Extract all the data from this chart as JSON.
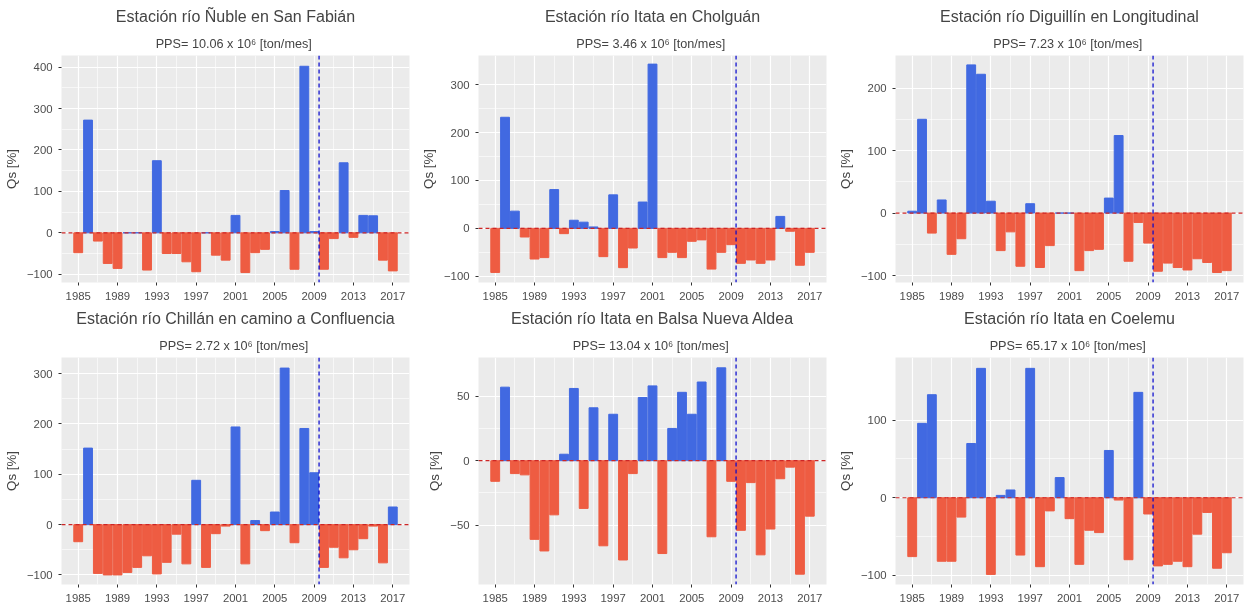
{
  "chart_data": [
    {
      "type": "bar",
      "title": "Estación río Ñuble en San Fabián",
      "subtitle": "PPS=  10.06 x 10⁶ [ton/mes]",
      "ylabel": "Qs [%]",
      "x": [
        1985,
        1986,
        1987,
        1988,
        1989,
        1990,
        1991,
        1992,
        1993,
        1994,
        1995,
        1996,
        1997,
        1998,
        1999,
        2000,
        2001,
        2002,
        2003,
        2004,
        2005,
        2006,
        2007,
        2008,
        2009,
        2010,
        2011,
        2012,
        2013,
        2014,
        2015,
        2016,
        2017
      ],
      "values": [
        -48,
        272,
        -20,
        -74,
        -86,
        0,
        0,
        -90,
        174,
        -50,
        -50,
        -70,
        -94,
        0,
        -54,
        -66,
        42,
        -96,
        -48,
        -40,
        3,
        102,
        -88,
        402,
        3,
        -88,
        -14,
        169,
        -11,
        42,
        41,
        -66,
        -92
      ],
      "colors": [
        "#ee5c42",
        "#4169e1",
        "#ee5c42",
        "#ee5c42",
        "#ee5c42",
        "#4169e1",
        "#4169e1",
        "#ee5c42",
        "#4169e1",
        "#ee5c42",
        "#ee5c42",
        "#ee5c42",
        "#ee5c42",
        "#4169e1",
        "#ee5c42",
        "#ee5c42",
        "#4169e1",
        "#ee5c42",
        "#ee5c42",
        "#ee5c42",
        "#4169e1",
        "#4169e1",
        "#ee5c42",
        "#4169e1",
        "#4169e1",
        "#ee5c42",
        "#ee5c42",
        "#4169e1",
        "#ee5c42",
        "#4169e1",
        "#4169e1",
        "#ee5c42",
        "#ee5c42"
      ],
      "xlim": [
        1983.3,
        2018.7
      ],
      "xticks": [
        1985,
        1989,
        1993,
        1997,
        2001,
        2005,
        2009,
        2013,
        2017
      ],
      "ylim": [
        -120,
        428
      ],
      "yticks": [
        -100,
        0,
        100,
        200,
        300,
        400
      ],
      "grid": true,
      "ref_lines": [
        {
          "axis": "x",
          "value": 2009.5,
          "color": "#0000cd",
          "line_style": "dashed"
        },
        {
          "axis": "y",
          "value": 0,
          "color": "#cd2626",
          "line_style": "dashed"
        }
      ]
    },
    {
      "type": "bar",
      "title": "Estación río Itata en Cholguán",
      "subtitle": "PPS=  3.46 x 10⁶ [ton/mes]",
      "ylabel": "Qs [%]",
      "x": [
        1985,
        1986,
        1987,
        1988,
        1989,
        1990,
        1991,
        1992,
        1993,
        1994,
        1995,
        1996,
        1997,
        1998,
        1999,
        2000,
        2001,
        2002,
        2003,
        2004,
        2005,
        2006,
        2007,
        2008,
        2009,
        2010,
        2011,
        2012,
        2013,
        2014,
        2015,
        2016,
        2017
      ],
      "values": [
        -92,
        232,
        36,
        -18,
        -64,
        -61,
        81,
        -11,
        17,
        13,
        3,
        -59,
        70,
        -82,
        -41,
        55,
        343,
        -61,
        -50,
        -61,
        -27,
        -24,
        -85,
        -50,
        -34,
        -73,
        -66,
        -73,
        -66,
        25,
        -6,
        -77,
        -50
      ],
      "colors": [
        "#ee5c42",
        "#4169e1",
        "#4169e1",
        "#ee5c42",
        "#ee5c42",
        "#ee5c42",
        "#4169e1",
        "#ee5c42",
        "#4169e1",
        "#4169e1",
        "#4169e1",
        "#ee5c42",
        "#4169e1",
        "#ee5c42",
        "#ee5c42",
        "#4169e1",
        "#4169e1",
        "#ee5c42",
        "#ee5c42",
        "#ee5c42",
        "#ee5c42",
        "#ee5c42",
        "#ee5c42",
        "#ee5c42",
        "#ee5c42",
        "#ee5c42",
        "#ee5c42",
        "#ee5c42",
        "#ee5c42",
        "#4169e1",
        "#ee5c42",
        "#ee5c42",
        "#ee5c42"
      ],
      "xlim": [
        1983.3,
        2018.7
      ],
      "xticks": [
        1985,
        1989,
        1993,
        1997,
        2001,
        2005,
        2009,
        2013,
        2017
      ],
      "ylim": [
        -113,
        361
      ],
      "yticks": [
        -100,
        0,
        100,
        200,
        300
      ],
      "grid": true,
      "ref_lines": [
        {
          "axis": "x",
          "value": 2009.5,
          "color": "#0000cd",
          "line_style": "dashed"
        },
        {
          "axis": "y",
          "value": 0,
          "color": "#cd2626",
          "line_style": "dashed"
        }
      ]
    },
    {
      "type": "bar",
      "title": "Estación río Diguillín en Longitudinal",
      "subtitle": "PPS=  7.23 x 10⁶ [ton/mes]",
      "ylabel": "Qs [%]",
      "x": [
        1985,
        1986,
        1987,
        1988,
        1989,
        1990,
        1991,
        1992,
        1993,
        1994,
        1995,
        1996,
        1997,
        1998,
        1999,
        2000,
        2001,
        2002,
        2003,
        2004,
        2005,
        2006,
        2007,
        2008,
        2009,
        2010,
        2011,
        2012,
        2013,
        2014,
        2015,
        2016,
        2017
      ],
      "values": [
        3,
        150,
        -32,
        21,
        -66,
        -41,
        237,
        222,
        19,
        -60,
        -30,
        -85,
        15,
        -87,
        -52,
        0,
        0,
        -92,
        -60,
        -58,
        24,
        124,
        -77,
        -15,
        -48,
        -93,
        -80,
        -87,
        -91,
        -73,
        -79,
        -95,
        -92
      ],
      "colors": [
        "#4169e1",
        "#4169e1",
        "#ee5c42",
        "#4169e1",
        "#ee5c42",
        "#ee5c42",
        "#4169e1",
        "#4169e1",
        "#4169e1",
        "#ee5c42",
        "#ee5c42",
        "#ee5c42",
        "#4169e1",
        "#ee5c42",
        "#ee5c42",
        "#4169e1",
        "#4169e1",
        "#ee5c42",
        "#ee5c42",
        "#ee5c42",
        "#4169e1",
        "#4169e1",
        "#ee5c42",
        "#ee5c42",
        "#ee5c42",
        "#ee5c42",
        "#ee5c42",
        "#ee5c42",
        "#ee5c42",
        "#ee5c42",
        "#ee5c42",
        "#ee5c42",
        "#ee5c42"
      ],
      "xlim": [
        1983.3,
        2018.7
      ],
      "xticks": [
        1985,
        1989,
        1993,
        1997,
        2001,
        2005,
        2009,
        2013,
        2017
      ],
      "ylim": [
        -111,
        252
      ],
      "yticks": [
        -100,
        0,
        100,
        200
      ],
      "grid": true,
      "ref_lines": [
        {
          "axis": "x",
          "value": 2009.5,
          "color": "#0000cd",
          "line_style": "dashed"
        },
        {
          "axis": "y",
          "value": 0,
          "color": "#cd2626",
          "line_style": "dashed"
        }
      ]
    },
    {
      "type": "bar",
      "title": "Estación río Chillán en camino a Confluencia",
      "subtitle": "PPS=  2.72 x 10⁶ [ton/mes]",
      "ylabel": "Qs [%]",
      "x": [
        1985,
        1986,
        1987,
        1988,
        1989,
        1990,
        1991,
        1992,
        1993,
        1994,
        1995,
        1996,
        1997,
        1998,
        1999,
        2000,
        2001,
        2002,
        2003,
        2004,
        2005,
        2006,
        2007,
        2008,
        2009,
        2010,
        2011,
        2012,
        2013,
        2014,
        2015,
        2016,
        2017
      ],
      "values": [
        -34,
        152,
        -97,
        -100,
        -100,
        -95,
        -85,
        -62,
        -98,
        -75,
        -19,
        -78,
        88,
        -85,
        -18,
        -3,
        194,
        -78,
        8,
        -12,
        25,
        311,
        -36,
        191,
        103,
        -85,
        -45,
        -66,
        -50,
        -28,
        -3,
        -76,
        35
      ],
      "colors": [
        "#ee5c42",
        "#4169e1",
        "#ee5c42",
        "#ee5c42",
        "#ee5c42",
        "#ee5c42",
        "#ee5c42",
        "#ee5c42",
        "#ee5c42",
        "#ee5c42",
        "#ee5c42",
        "#ee5c42",
        "#4169e1",
        "#ee5c42",
        "#ee5c42",
        "#ee5c42",
        "#4169e1",
        "#ee5c42",
        "#4169e1",
        "#ee5c42",
        "#4169e1",
        "#4169e1",
        "#ee5c42",
        "#4169e1",
        "#4169e1",
        "#ee5c42",
        "#ee5c42",
        "#ee5c42",
        "#ee5c42",
        "#ee5c42",
        "#ee5c42",
        "#ee5c42",
        "#4169e1"
      ],
      "xlim": [
        1983.3,
        2018.7
      ],
      "xticks": [
        1985,
        1989,
        1993,
        1997,
        2001,
        2005,
        2009,
        2013,
        2017
      ],
      "ylim": [
        -119,
        332
      ],
      "yticks": [
        -100,
        0,
        100,
        200,
        300
      ],
      "grid": true,
      "ref_lines": [
        {
          "axis": "x",
          "value": 2009.5,
          "color": "#0000cd",
          "line_style": "dashed"
        },
        {
          "axis": "y",
          "value": 0,
          "color": "#cd2626",
          "line_style": "dashed"
        }
      ]
    },
    {
      "type": "bar",
      "title": "Estación río Itata en Balsa Nueva Aldea",
      "subtitle": "PPS=  13.04 x 10⁶ [ton/mes]",
      "ylabel": "Qs [%]",
      "x": [
        1985,
        1986,
        1987,
        1988,
        1989,
        1990,
        1991,
        1992,
        1993,
        1994,
        1995,
        1996,
        1997,
        1998,
        1999,
        2000,
        2001,
        2002,
        2003,
        2004,
        2005,
        2006,
        2007,
        2008,
        2009,
        2010,
        2011,
        2012,
        2013,
        2014,
        2015,
        2016,
        2017
      ],
      "values": [
        -16,
        57,
        -10,
        -11,
        -61,
        -70,
        -42,
        5,
        56,
        -37,
        41,
        -66,
        36,
        -77,
        -10,
        49,
        58,
        -72,
        25,
        53,
        36,
        61,
        -59,
        72,
        -16,
        -54,
        -17,
        -73,
        -53,
        -14,
        -5,
        -88,
        -43
      ],
      "colors": [
        "#ee5c42",
        "#4169e1",
        "#ee5c42",
        "#ee5c42",
        "#ee5c42",
        "#ee5c42",
        "#ee5c42",
        "#4169e1",
        "#4169e1",
        "#ee5c42",
        "#4169e1",
        "#ee5c42",
        "#4169e1",
        "#ee5c42",
        "#ee5c42",
        "#4169e1",
        "#4169e1",
        "#ee5c42",
        "#4169e1",
        "#4169e1",
        "#4169e1",
        "#4169e1",
        "#ee5c42",
        "#4169e1",
        "#ee5c42",
        "#ee5c42",
        "#ee5c42",
        "#ee5c42",
        "#ee5c42",
        "#ee5c42",
        "#ee5c42",
        "#ee5c42",
        "#ee5c42"
      ],
      "xlim": [
        1983.3,
        2018.7
      ],
      "xticks": [
        1985,
        1989,
        1993,
        1997,
        2001,
        2005,
        2009,
        2013,
        2017
      ],
      "ylim": [
        -96,
        80
      ],
      "yticks": [
        -50,
        0,
        50
      ],
      "grid": true,
      "ref_lines": [
        {
          "axis": "x",
          "value": 2009.5,
          "color": "#0000cd",
          "line_style": "dashed"
        },
        {
          "axis": "y",
          "value": 0,
          "color": "#cd2626",
          "line_style": "dashed"
        }
      ]
    },
    {
      "type": "bar",
      "title": "Estación río Itata en Coelemu",
      "subtitle": "PPS=  65.17 x 10⁶ [ton/mes]",
      "ylabel": "Qs [%]",
      "x": [
        1985,
        1986,
        1987,
        1988,
        1989,
        1990,
        1991,
        1992,
        1993,
        1994,
        1995,
        1996,
        1997,
        1998,
        1999,
        2000,
        2001,
        2002,
        2003,
        2004,
        2005,
        2006,
        2007,
        2008,
        2009,
        2010,
        2011,
        2012,
        2013,
        2014,
        2015,
        2016,
        2017
      ],
      "values": [
        -76,
        96,
        133,
        -82,
        -82,
        -25,
        70,
        167,
        -99,
        3,
        10,
        -74,
        167,
        -89,
        -17,
        26,
        -27,
        -86,
        -42,
        -45,
        61,
        -3,
        -80,
        136,
        -21,
        -88,
        -86,
        -82,
        -89,
        -47,
        -19,
        -91,
        -71
      ],
      "colors": [
        "#ee5c42",
        "#4169e1",
        "#4169e1",
        "#ee5c42",
        "#ee5c42",
        "#ee5c42",
        "#4169e1",
        "#4169e1",
        "#ee5c42",
        "#4169e1",
        "#4169e1",
        "#ee5c42",
        "#4169e1",
        "#ee5c42",
        "#ee5c42",
        "#4169e1",
        "#ee5c42",
        "#ee5c42",
        "#ee5c42",
        "#ee5c42",
        "#4169e1",
        "#ee5c42",
        "#ee5c42",
        "#4169e1",
        "#ee5c42",
        "#ee5c42",
        "#ee5c42",
        "#ee5c42",
        "#ee5c42",
        "#ee5c42",
        "#ee5c42",
        "#ee5c42",
        "#ee5c42"
      ],
      "xlim": [
        1983.3,
        2018.7
      ],
      "xticks": [
        1985,
        1989,
        1993,
        1997,
        2001,
        2005,
        2009,
        2013,
        2017
      ],
      "ylim": [
        -112,
        181
      ],
      "yticks": [
        -100,
        0,
        100
      ],
      "grid": true,
      "ref_lines": [
        {
          "axis": "x",
          "value": 2009.5,
          "color": "#0000cd",
          "line_style": "dashed"
        },
        {
          "axis": "y",
          "value": 0,
          "color": "#cd2626",
          "line_style": "dashed"
        }
      ]
    }
  ]
}
